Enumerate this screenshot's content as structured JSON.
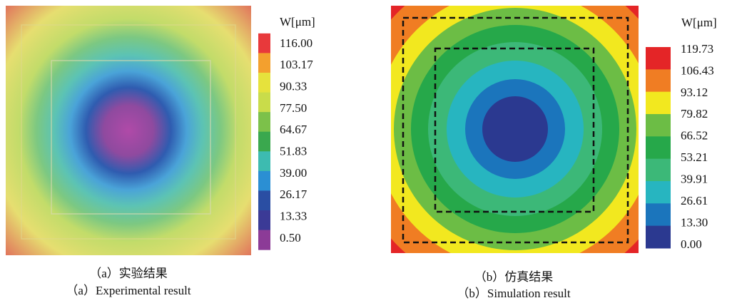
{
  "panels": [
    {
      "unit": "W[μm]",
      "levels": [
        "116.00",
        "103.17",
        "90.33",
        "77.50",
        "64.67",
        "51.83",
        "39.00",
        "26.17",
        "13.33",
        "0.50"
      ],
      "colors": [
        "#e8393b",
        "#f3a02e",
        "#e6e23c",
        "#c9dc4a",
        "#7cc14a",
        "#3aa84e",
        "#3dbbb0",
        "#2b8fd3",
        "#2a4ea3",
        "#3b3a96",
        "#8c3b97"
      ],
      "caption_cn": "（a）实验结果",
      "caption_en": "（a）Experimental result"
    },
    {
      "unit": "W[μm]",
      "levels": [
        "119.73",
        "106.43",
        "93.12",
        "79.82",
        "66.52",
        "53.21",
        "39.91",
        "26.61",
        "13.30",
        "0.00"
      ],
      "colors": [
        "#e42527",
        "#f07d23",
        "#f2e81f",
        "#6cbd45",
        "#26a84a",
        "#3cb878",
        "#27b5c0",
        "#1b75bc",
        "#2b3990"
      ],
      "caption_cn": "（b）仿真结果",
      "caption_en": "（b）Simulation result"
    }
  ]
}
